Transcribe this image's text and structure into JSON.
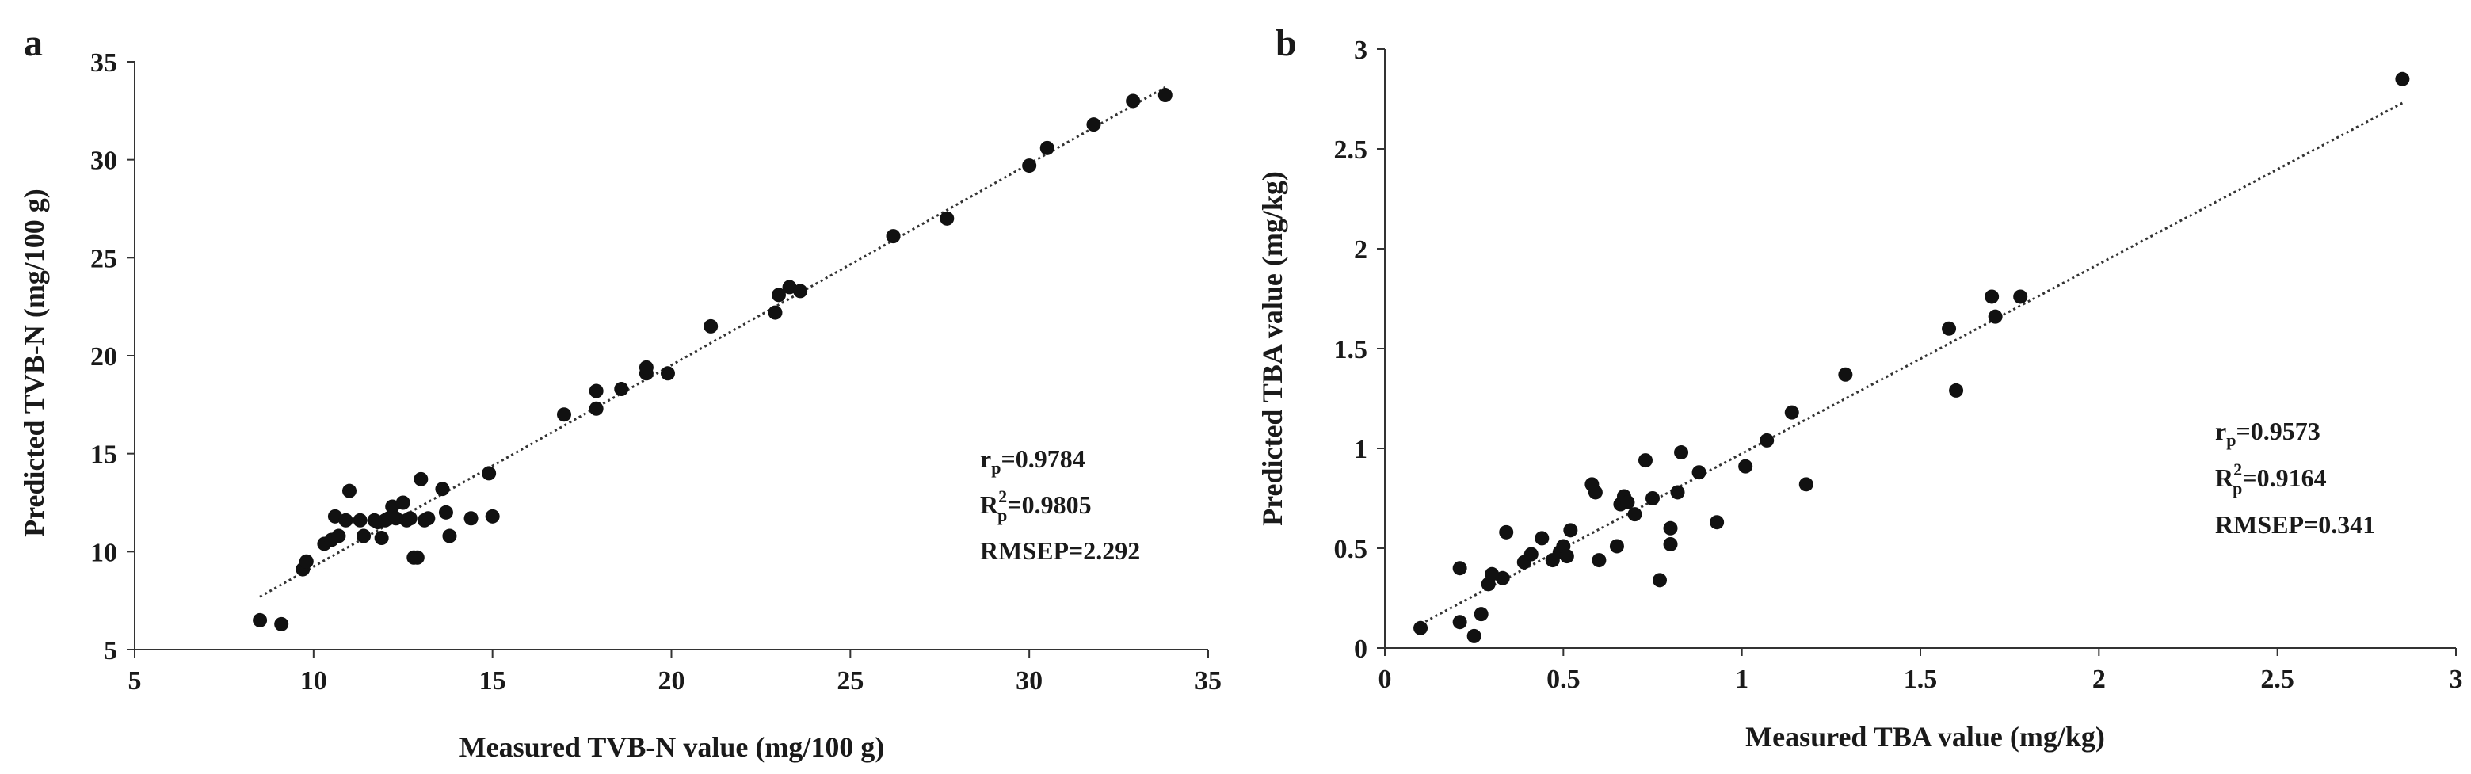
{
  "chart_data": [
    {
      "type": "scatter",
      "panel_label": "a",
      "xlabel": "Measured TVB-N value (mg/100 g)",
      "ylabel": "Predicted TVB-N (mg/100 g)",
      "xlim": [
        5,
        35
      ],
      "ylim": [
        5,
        35
      ],
      "xticks": [
        "5",
        "10",
        "15",
        "20",
        "25",
        "30",
        "35"
      ],
      "yticks": [
        "5",
        "10",
        "15",
        "20",
        "25",
        "30",
        "35"
      ],
      "grid": false,
      "trendline": {
        "x": [
          8.5,
          33.8
        ],
        "y": [
          7.7,
          33.7
        ],
        "style": "dotted"
      },
      "stats": {
        "r_label": "r",
        "r_sub": "p",
        "r_value": "=0.9784",
        "r2_label": "R",
        "r2_sup": "2",
        "r2_sub": "p",
        "r2_value": "=0.9805",
        "rmsep_text": "RMSEP=2.292"
      },
      "points": {
        "x": [
          8.5,
          9.1,
          9.7,
          9.8,
          10.3,
          10.5,
          10.6,
          10.7,
          10.9,
          11.0,
          11.3,
          11.4,
          11.7,
          11.8,
          11.9,
          12.0,
          12.1,
          12.2,
          12.3,
          12.5,
          12.6,
          12.7,
          12.8,
          12.9,
          13.0,
          13.1,
          13.2,
          13.6,
          13.7,
          13.8,
          14.4,
          14.9,
          15.0,
          17.0,
          17.9,
          17.9,
          18.6,
          19.3,
          19.3,
          19.9,
          21.1,
          22.9,
          23.0,
          23.3,
          23.6,
          26.2,
          27.7,
          30.0,
          30.5,
          31.8,
          32.9,
          33.8
        ],
        "y": [
          6.5,
          6.3,
          9.1,
          9.5,
          10.4,
          10.6,
          11.8,
          10.8,
          11.6,
          13.1,
          11.6,
          10.8,
          11.6,
          11.5,
          10.7,
          11.6,
          11.7,
          12.3,
          11.7,
          12.5,
          11.6,
          11.7,
          9.7,
          9.7,
          13.7,
          11.6,
          11.7,
          13.2,
          12.0,
          10.8,
          11.7,
          14.0,
          11.8,
          17.0,
          18.2,
          17.3,
          18.3,
          19.1,
          19.4,
          19.1,
          21.5,
          22.2,
          23.1,
          23.5,
          23.3,
          26.1,
          27.0,
          29.7,
          30.6,
          31.8,
          33.0,
          33.3
        ]
      }
    },
    {
      "type": "scatter",
      "panel_label": "b",
      "xlabel": "Measured TBA value (mg/kg)",
      "ylabel": "Predicted TBA value (mg/kg)",
      "xlim": [
        0,
        3
      ],
      "ylim": [
        0,
        3
      ],
      "xticks": [
        "0",
        "0.5",
        "1",
        "1.5",
        "2",
        "2.5",
        "3"
      ],
      "yticks": [
        "0",
        "0.5",
        "1",
        "1.5",
        "2",
        "2.5",
        "3"
      ],
      "grid": false,
      "trendline": {
        "x": [
          0.1,
          2.85
        ],
        "y": [
          0.12,
          2.73
        ],
        "style": "dotted"
      },
      "stats": {
        "r_label": "r",
        "r_sub": "p",
        "r_value": "=0.9573",
        "r2_label": "R",
        "r2_sup": "2",
        "r2_sub": "p",
        "r2_value": "=0.9164",
        "rmsep_text": "RMSEP=0.341"
      },
      "points": {
        "x": [
          0.1,
          0.21,
          0.21,
          0.25,
          0.27,
          0.29,
          0.3,
          0.33,
          0.34,
          0.39,
          0.41,
          0.44,
          0.47,
          0.49,
          0.5,
          0.51,
          0.52,
          0.58,
          0.59,
          0.6,
          0.65,
          0.66,
          0.67,
          0.68,
          0.7,
          0.73,
          0.75,
          0.77,
          0.8,
          0.8,
          0.82,
          0.83,
          0.88,
          0.93,
          1.01,
          1.07,
          1.14,
          1.18,
          1.29,
          1.58,
          1.6,
          1.7,
          1.71,
          1.78,
          2.85
        ],
        "y": [
          0.1,
          0.4,
          0.13,
          0.06,
          0.17,
          0.32,
          0.37,
          0.35,
          0.58,
          0.43,
          0.47,
          0.55,
          0.44,
          0.48,
          0.51,
          0.46,
          0.59,
          0.82,
          0.78,
          0.44,
          0.51,
          0.72,
          0.76,
          0.73,
          0.67,
          0.94,
          0.75,
          0.34,
          0.52,
          0.6,
          0.78,
          0.98,
          0.88,
          0.63,
          0.91,
          1.04,
          1.18,
          0.82,
          1.37,
          1.6,
          1.29,
          1.76,
          1.66,
          1.76,
          2.85
        ]
      }
    }
  ]
}
